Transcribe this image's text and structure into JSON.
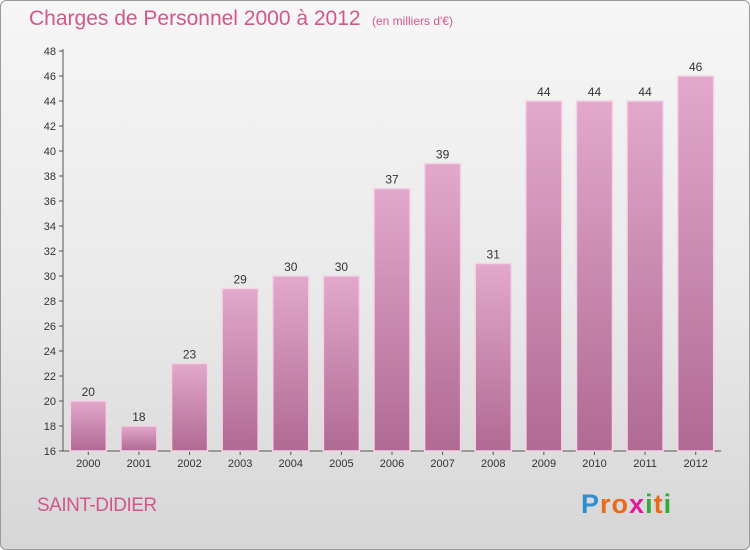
{
  "title": "Charges de Personnel 2000 à 2012",
  "subtitle": "(en milliers d'€)",
  "commune": "SAINT-DIDIER",
  "brand": {
    "letters": [
      "P",
      "r",
      "o",
      "x",
      "i",
      "t",
      "i"
    ],
    "colors": [
      "#2e8fd0",
      "#e86a1a",
      "#e86a1a",
      "#e5189a",
      "#36a83a",
      "#e86a1a",
      "#36a83a"
    ]
  },
  "colors": {
    "bar_top": "#e3a8cc",
    "bar_bottom": "#b06a93",
    "bar_edge": "#f2d4e4",
    "accent": "#d1578b"
  },
  "chart_data": {
    "type": "bar",
    "categories": [
      "2000",
      "2001",
      "2002",
      "2003",
      "2004",
      "2005",
      "2006",
      "2007",
      "2008",
      "2009",
      "2010",
      "2011",
      "2012"
    ],
    "values": [
      20,
      18,
      23,
      29,
      30,
      30,
      37,
      39,
      31,
      44,
      44,
      44,
      46
    ],
    "title": "Charges de Personnel 2000 à 2012",
    "subtitle": "(en milliers d'€)",
    "xlabel": "",
    "ylabel": "",
    "ylim": [
      16,
      48
    ],
    "yticks": [
      16,
      18,
      20,
      22,
      24,
      26,
      28,
      30,
      32,
      34,
      36,
      38,
      40,
      42,
      44,
      46,
      48
    ],
    "grid": false,
    "legend": "none"
  }
}
